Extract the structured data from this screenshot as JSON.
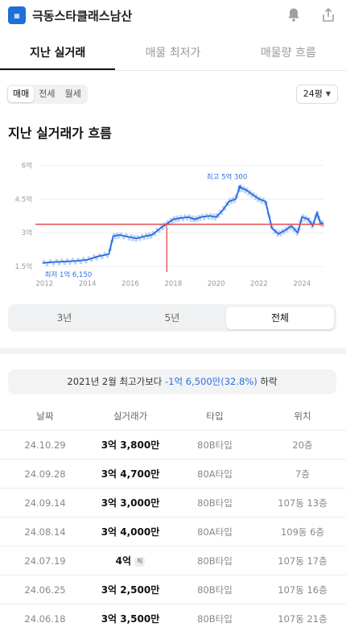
{
  "header": {
    "title": "극동스타클래스남산",
    "logo_icon": "apartment-logo-icon",
    "icons": [
      "bell-icon",
      "share-icon"
    ]
  },
  "tabs": [
    {
      "label": "지난 실거래",
      "active": true
    },
    {
      "label": "매물 최저가",
      "active": false
    },
    {
      "label": "매물량 흐름",
      "active": false
    }
  ],
  "trade_type": {
    "options": [
      "매매",
      "전세",
      "월세"
    ],
    "selected": "매매"
  },
  "area_select": {
    "value": "24평"
  },
  "section_title": "지난 실거래가 흐름",
  "chart_data": {
    "type": "line",
    "title": "",
    "y_tick_labels": [
      "6억",
      "4.5억",
      "3억",
      "1.5억"
    ],
    "y_ticks": [
      6.0,
      4.5,
      3.0,
      1.5
    ],
    "x_tick_labels": [
      "2012",
      "2014",
      "2016",
      "2018",
      "2020",
      "2022",
      "2024"
    ],
    "x_ticks": [
      2012,
      2014,
      2016,
      2018,
      2020,
      2022,
      2024
    ],
    "xlim": [
      2011.8,
      2025.0
    ],
    "ylim": [
      1.25,
      6.2
    ],
    "grid": true,
    "reference_line_y": 3.38,
    "reference_line_color": "#e84a4a",
    "marker_year": 2017.7,
    "max_label": "최고 5억 300",
    "max_point": [
      2021.1,
      5.03
    ],
    "min_label": "최저 1억 6,150",
    "min_point": [
      2011.9,
      1.615
    ],
    "line_color": "#2d6fe0",
    "series": [
      {
        "x": [
          2011.9,
          2012.5,
          2013.0,
          2013.5,
          2014.0,
          2014.5,
          2015.0,
          2015.2,
          2015.5,
          2016.0,
          2016.3,
          2016.7,
          2017.0,
          2017.4,
          2017.7,
          2018.0,
          2018.3,
          2018.7,
          2019.0,
          2019.3,
          2019.7,
          2020.0,
          2020.3,
          2020.6,
          2020.9,
          2021.1,
          2021.4,
          2021.7,
          2022.0,
          2022.3,
          2022.6,
          2022.9,
          2023.2,
          2023.5,
          2023.8,
          2024.0,
          2024.3,
          2024.5,
          2024.7,
          2024.85,
          2025.0
        ],
        "values": [
          1.65,
          1.7,
          1.72,
          1.75,
          1.8,
          1.95,
          2.05,
          2.85,
          2.9,
          2.8,
          2.75,
          2.85,
          2.9,
          3.2,
          3.4,
          3.6,
          3.65,
          3.7,
          3.6,
          3.7,
          3.75,
          3.7,
          4.0,
          4.4,
          4.5,
          5.03,
          4.9,
          4.7,
          4.5,
          4.4,
          3.2,
          2.95,
          3.1,
          3.3,
          3.0,
          3.7,
          3.6,
          3.3,
          3.9,
          3.45,
          3.4
        ]
      }
    ]
  },
  "period": {
    "options": [
      "3년",
      "5년",
      "전체"
    ],
    "selected": "전체"
  },
  "compare": {
    "prefix": "2021년 2월 최고가보다 ",
    "diff": "-1억 6,500만(32.8%)",
    "suffix": " 하락"
  },
  "table": {
    "headers": [
      "날짜",
      "실거래가",
      "타입",
      "위치"
    ],
    "rows": [
      {
        "date": "24.10.29",
        "price": "3억 3,800만",
        "badge": "",
        "type": "80B타입",
        "loc": "20층"
      },
      {
        "date": "24.09.28",
        "price": "3억 4,700만",
        "badge": "",
        "type": "80A타입",
        "loc": "7층"
      },
      {
        "date": "24.09.14",
        "price": "3억 3,000만",
        "badge": "",
        "type": "80B타입",
        "loc": "107동 13층"
      },
      {
        "date": "24.08.14",
        "price": "3억 4,000만",
        "badge": "",
        "type": "80A타입",
        "loc": "109동 6층"
      },
      {
        "date": "24.07.19",
        "price": "4억",
        "badge": "직",
        "type": "80B타입",
        "loc": "107동 17층"
      },
      {
        "date": "24.06.25",
        "price": "3억 2,500만",
        "badge": "",
        "type": "80B타입",
        "loc": "107동 16층"
      },
      {
        "date": "24.06.18",
        "price": "3억 3,500만",
        "badge": "",
        "type": "80B타입",
        "loc": "107동 21층"
      }
    ]
  }
}
